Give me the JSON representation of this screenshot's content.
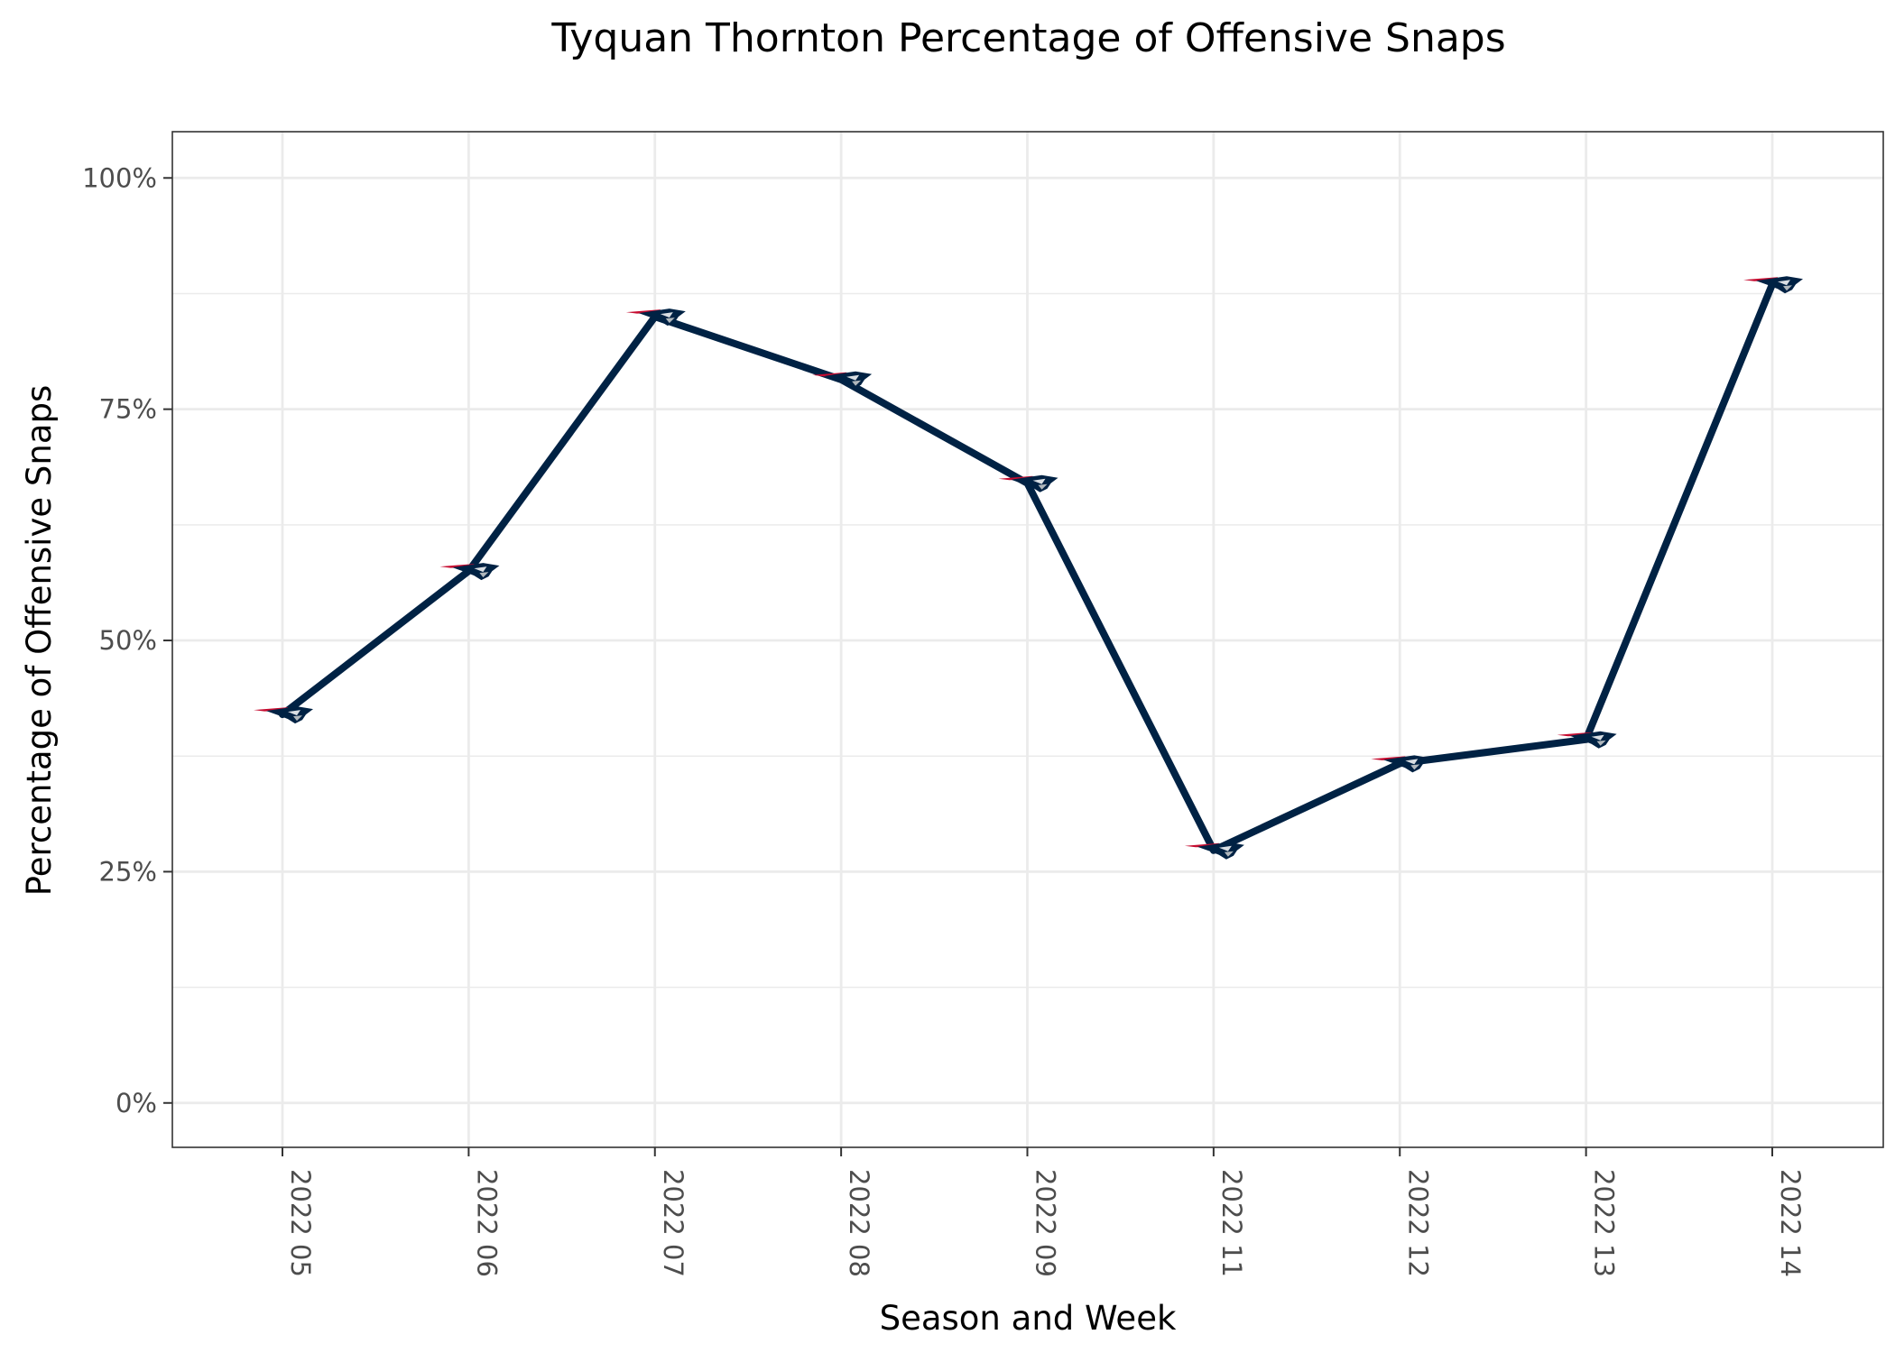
{
  "chart_data": {
    "type": "line",
    "title": "Tyquan Thornton Percentage of Offensive Snaps",
    "xlabel": "Season and Week",
    "ylabel": "Percentage of Offensive Snaps",
    "categories": [
      "2022 05",
      "2022 06",
      "2022 07",
      "2022 08",
      "2022 09",
      "2022 11",
      "2022 12",
      "2022 13",
      "2022 14"
    ],
    "series": [
      {
        "values": [
          0.42,
          0.575,
          0.85,
          0.782,
          0.67,
          0.273,
          0.367,
          0.393,
          0.885
        ],
        "color": "#002244",
        "marker": "patriots-logo-icon"
      }
    ],
    "ylim": [
      -0.048,
      1.05
    ],
    "yticks": [
      {
        "value": 0,
        "label": "0%"
      },
      {
        "value": 0.25,
        "label": "25%"
      },
      {
        "value": 0.5,
        "label": "50%"
      },
      {
        "value": 0.75,
        "label": "75%"
      },
      {
        "value": 1,
        "label": "100%"
      }
    ],
    "grid": true,
    "legend": "none",
    "colors": {
      "line": "#002244",
      "accent": "#c60c30",
      "grid": "#ebebeb",
      "panel_border": "#333333"
    }
  }
}
